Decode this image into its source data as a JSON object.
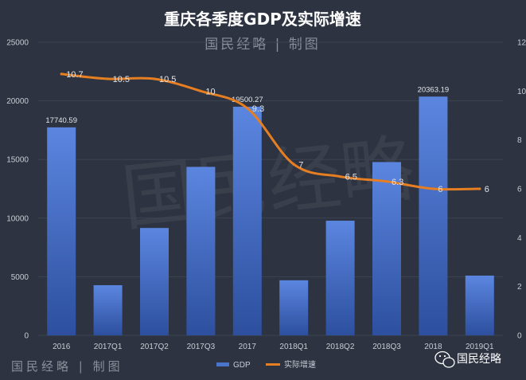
{
  "title": "重庆各季度GDP及实际增速",
  "brand_top": "国民经略 | 制图",
  "brand_bottom": "国民经略 | 制图",
  "watermark": "国民经略",
  "wechat_label": "国民经略",
  "colors": {
    "background": "#2d3340",
    "bar_top": "#5b86e0",
    "bar_bottom": "#2d4f9e",
    "line": "#e67e22",
    "text": "#c9ccd3"
  },
  "chart_data": {
    "type": "bar",
    "title": "重庆各季度GDP及实际增速",
    "categories": [
      "2016",
      "2017Q1",
      "2017Q2",
      "2017Q3",
      "2017",
      "2018Q1",
      "2018Q2",
      "2018Q3",
      "2018",
      "2019Q1"
    ],
    "y_left": {
      "min": 0,
      "max": 25000,
      "ticks": [
        0,
        5000,
        10000,
        15000,
        20000,
        25000
      ]
    },
    "y_right": {
      "min": 0,
      "max": 12,
      "ticks": [
        0,
        2,
        4,
        6,
        8,
        10,
        12
      ]
    },
    "grid": true,
    "legend": "bottom",
    "series": [
      {
        "name": "GDP",
        "type": "bar",
        "axis": "left",
        "values": [
          17740.59,
          4280,
          9160,
          14370,
          19500.27,
          4700,
          9780,
          14780,
          20363.19,
          5100
        ],
        "labels": [
          "17740.59",
          "",
          "",
          "",
          "19500.27",
          "",
          "",
          "",
          "20363.19",
          ""
        ]
      },
      {
        "name": "实际增速",
        "type": "line",
        "axis": "right",
        "values": [
          10.7,
          10.5,
          10.5,
          10,
          9.3,
          7,
          6.5,
          6.3,
          6,
          6
        ],
        "labels": [
          "10.7",
          "10.5",
          "10.5",
          "10",
          "9.3",
          "7",
          "6.5",
          "6.3",
          "6",
          "6"
        ]
      }
    ]
  }
}
